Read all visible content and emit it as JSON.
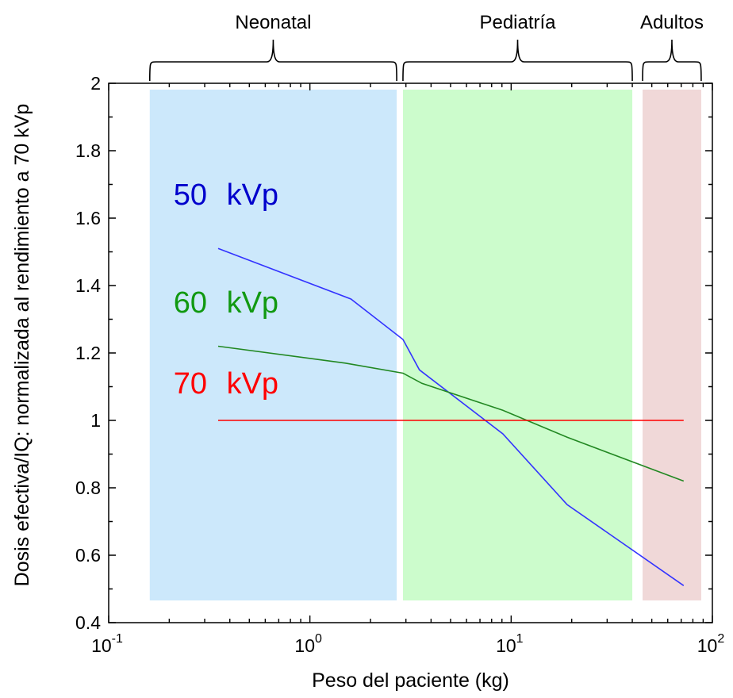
{
  "chart_data": {
    "type": "line",
    "xscale": "log",
    "xlim": [
      0.1,
      100
    ],
    "ylim": [
      0.4,
      2
    ],
    "xlabel": "Peso del paciente (kg)",
    "ylabel": "Dosis efectiva/IQ: normalizada al rendimiento a 70 kVp",
    "xticks": [
      {
        "base": "10",
        "exp": "-1",
        "value": 0.1
      },
      {
        "base": "10",
        "exp": "0",
        "value": 1
      },
      {
        "base": "10",
        "exp": "1",
        "value": 10
      },
      {
        "base": "10",
        "exp": "2",
        "value": 100
      }
    ],
    "yticks": [
      {
        "label": "0.4",
        "value": 0.4
      },
      {
        "label": "0.6",
        "value": 0.6
      },
      {
        "label": "0.8",
        "value": 0.8
      },
      {
        "label": "1",
        "value": 1.0
      },
      {
        "label": "1.2",
        "value": 1.2
      },
      {
        "label": "1.4",
        "value": 1.4
      },
      {
        "label": "1.6",
        "value": 1.6
      },
      {
        "label": "1.8",
        "value": 1.8
      },
      {
        "label": "2",
        "value": 2.0
      }
    ],
    "regions": [
      {
        "label": "Neonatal",
        "x0": 0.16,
        "x1": 2.7,
        "color": "#cce8fb"
      },
      {
        "label": "Pediatría",
        "x0": 2.9,
        "x1": 40,
        "color": "#ccfccc"
      },
      {
        "label": "Adultos",
        "x0": 45,
        "x1": 88,
        "color": "#f0d8d8"
      }
    ],
    "series": [
      {
        "name": "50 kVp",
        "color": "#3333ff",
        "label_color": "#0000cc",
        "label_pos": {
          "x": 0.21,
          "y": 1.64
        },
        "x": [
          0.35,
          1.6,
          2.9,
          3.5,
          9.1,
          19,
          72
        ],
        "y": [
          1.51,
          1.36,
          1.24,
          1.15,
          0.96,
          0.75,
          0.51
        ]
      },
      {
        "name": "60 kVp",
        "color": "#228822",
        "label_color": "#119911",
        "label_pos": {
          "x": 0.21,
          "y": 1.32
        },
        "x": [
          0.35,
          1.5,
          2.9,
          3.6,
          9.1,
          19,
          72
        ],
        "y": [
          1.22,
          1.17,
          1.14,
          1.11,
          1.03,
          0.95,
          0.82
        ]
      },
      {
        "name": "70 kVp",
        "color": "#ff0000",
        "label_color": "#ff0000",
        "label_pos": {
          "x": 0.21,
          "y": 1.08
        },
        "x": [
          0.35,
          72
        ],
        "y": [
          1.0,
          1.0
        ]
      }
    ]
  }
}
